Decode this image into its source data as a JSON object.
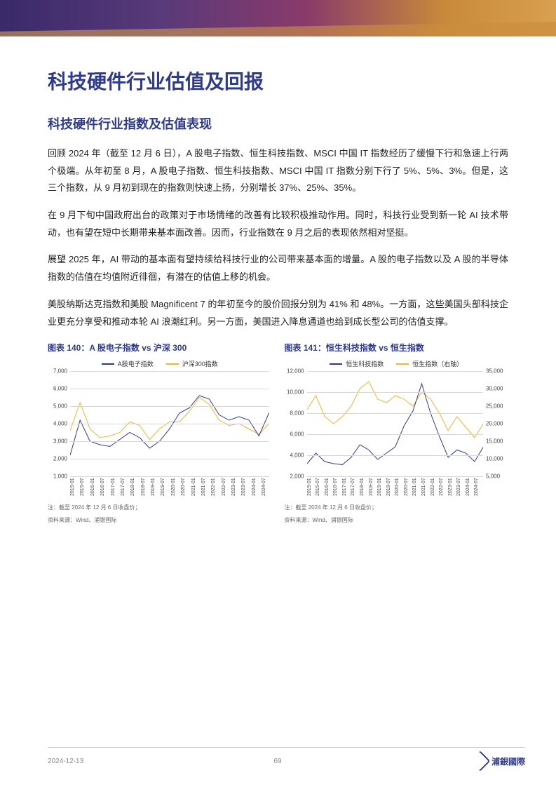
{
  "header": {},
  "title_h1": "科技硬件行业估值及回报",
  "title_h2": "科技硬件行业指数及估值表现",
  "paragraphs": [
    "回顾 2024 年（截至 12 月 6 日），A 股电子指数、恒生科技指数、MSCI 中国 IT 指数经历了缓慢下行和急速上行两个极端。从年初至 8 月，A 股电子指数、恒生科技指数、MSCI 中国 IT 指数分别下行了 5%、5%、3%。但是，这三个指数，从 9 月初到现在的指数则快速上扬，分别增长 37%、25%、35%。",
    "在 9 月下旬中国政府出台的政策对于市场情绪的改善有比较积极推动作用。同时，科技行业受到新一轮 AI 技术带动，也有望在短中长期带来基本面改善。因而，行业指数在 9 月之后的表现依然相对坚挺。",
    "展望 2025 年，AI 带动的基本面有望持续给科技行业的公司带来基本面的增量。A 股的电子指数以及 A 股的半导体指数的估值在均值附近徘徊，有潜在的估值上移的机会。",
    "美股纳斯达克指数和美股 Magnificent 7 的年初至今的股价回报分别为 41% 和 48%。一方面，这些美国头部科技企业更充分享受和推动本轮 AI 浪潮红利。另一方面，美国进入降息通道也给到成长型公司的估值支撑。"
  ],
  "chart1": {
    "title": "图表 140：A 股电子指数 vs 沪深 300",
    "type": "line",
    "legend": [
      {
        "label": "A股电子指数",
        "color": "#2e3a8a"
      },
      {
        "label": "沪深300指数",
        "color": "#f0b430"
      }
    ],
    "x_labels": [
      "2015-01",
      "2015-07",
      "2016-01",
      "2016-07",
      "2017-01",
      "2017-07",
      "2018-01",
      "2018-07",
      "2019-01",
      "2019-07",
      "2020-01",
      "2020-07",
      "2021-01",
      "2021-07",
      "2022-01",
      "2022-07",
      "2023-01",
      "2023-07",
      "2024-01",
      "2024-07"
    ],
    "ylim": [
      1000,
      7000
    ],
    "ytick_step": 1000,
    "y_ticks": [
      1000,
      2000,
      3000,
      4000,
      5000,
      6000,
      7000
    ],
    "grid_color": "#d8d8d8",
    "background_color": "#ffffff",
    "series1_values": [
      2200,
      4200,
      3000,
      2800,
      2700,
      3100,
      3500,
      3200,
      2600,
      3000,
      3700,
      4600,
      4900,
      5600,
      5400,
      4500,
      4200,
      4400,
      4200,
      3300,
      4600
    ],
    "series1_color": "#2e3a8a",
    "series2_values": [
      3600,
      5200,
      3700,
      3200,
      3300,
      3500,
      4100,
      3900,
      3100,
      3700,
      4100,
      4100,
      4700,
      5500,
      5100,
      4200,
      3900,
      4000,
      3700,
      3400,
      4000
    ],
    "series2_color": "#f0b430",
    "note1": "注：截至 2024 年 12 月 6 日收盘价；",
    "note2": "资料来源：Wind、浦银国际"
  },
  "chart2": {
    "title": "图表 141：恒生科技指数 vs 恒生指数",
    "type": "line",
    "legend": [
      {
        "label": "恒生科技指数",
        "color": "#2e3a8a"
      },
      {
        "label": "恒生指数（右轴）",
        "color": "#f0b430"
      }
    ],
    "x_labels": [
      "2015-01",
      "2015-07",
      "2016-01",
      "2016-07",
      "2017-01",
      "2017-07",
      "2018-01",
      "2018-07",
      "2019-01",
      "2019-07",
      "2020-01",
      "2020-07",
      "2021-01",
      "2021-07",
      "2022-01",
      "2022-07",
      "2023-01",
      "2023-07",
      "2024-01",
      "2024-07"
    ],
    "ylim_left": [
      2000,
      12000
    ],
    "ytick_step_left": 2000,
    "y_ticks_left": [
      2000,
      4000,
      6000,
      8000,
      10000,
      12000
    ],
    "ylim_right": [
      5000,
      35000
    ],
    "ytick_step_right": 5000,
    "y_ticks_right": [
      5000,
      10000,
      15000,
      20000,
      25000,
      30000,
      35000
    ],
    "grid_color": "#d8d8d8",
    "background_color": "#ffffff",
    "series1_values": [
      3200,
      4200,
      3400,
      3200,
      3100,
      3800,
      5000,
      4500,
      3600,
      4200,
      4800,
      6800,
      8200,
      10800,
      8000,
      5800,
      3800,
      4500,
      4200,
      3400,
      4800
    ],
    "series1_color": "#2e3a8a",
    "series2_values": [
      24000,
      28000,
      22000,
      20000,
      22000,
      25000,
      30000,
      32000,
      27000,
      26000,
      28000,
      27000,
      25000,
      29000,
      27000,
      23000,
      18000,
      22000,
      19000,
      16000,
      20000
    ],
    "series2_color": "#f0b430",
    "note1": "注：截至 2024 年 12 月 6 日收盘价；",
    "note2": "资料来源：Wind、浦银国际"
  },
  "footer": {
    "date": "2024-12-13",
    "page": "69",
    "logo_text": "浦銀國際"
  }
}
